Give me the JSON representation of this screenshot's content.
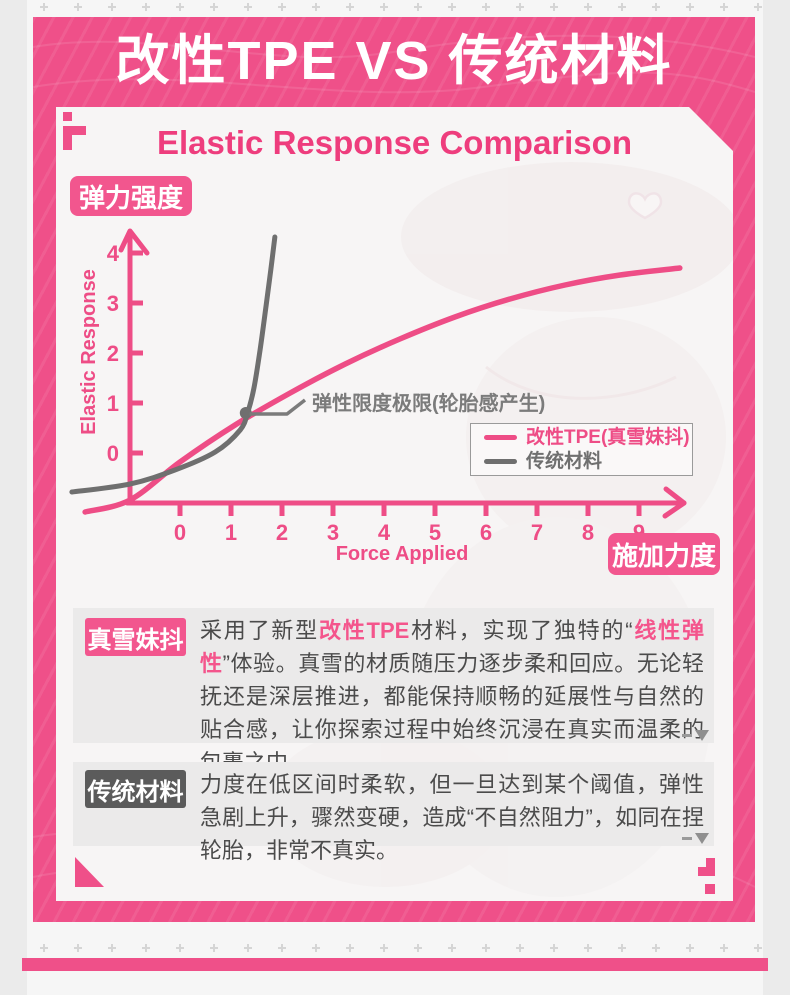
{
  "page_title": "改性TPE VS 传统材料",
  "chart_section": {
    "heading": "Elastic Response Comparison",
    "y_axis_badge": "弹力强度",
    "x_axis_badge": "施加力度"
  },
  "chart_data": {
    "type": "line",
    "title": "Elastic Response Comparison",
    "xlabel": "Force Applied",
    "ylabel": "Elastic Response",
    "x_ticks": [
      0,
      1,
      2,
      3,
      4,
      5,
      6,
      7,
      8,
      9
    ],
    "y_ticks": [
      0,
      1,
      2,
      3,
      4
    ],
    "grid": false,
    "legend_position": "lower right",
    "series": [
      {
        "name": "改性TPE(真雪妹抖)",
        "color": "#ee4d86",
        "x": [
          -1.86,
          -0.98,
          0,
          1.08,
          2.16,
          3.24,
          4.31,
          5.39,
          6.47,
          7.55,
          8.63,
          9.8
        ],
        "y": [
          -1.18,
          -0.94,
          -0.18,
          0.56,
          1.2,
          1.78,
          2.28,
          2.72,
          3.08,
          3.36,
          3.56,
          3.7
        ]
      },
      {
        "name": "传统材料",
        "color": "#6f6f6f",
        "x": [
          -2.12,
          -0.98,
          -0.1,
          0.69,
          1.18,
          1.33,
          1.45,
          1.57,
          1.69,
          1.78,
          1.86
        ],
        "y": [
          -0.78,
          -0.62,
          -0.34,
          0.02,
          0.46,
          0.82,
          1.3,
          2.06,
          2.96,
          3.66,
          4.32
        ]
      }
    ],
    "annotation": {
      "text": "弹性限度极限(轮胎感产生)",
      "x": 1.29,
      "y": 0.8
    }
  },
  "info_blocks": [
    {
      "badge": "真雪妹抖",
      "badge_bg": "#f2568e",
      "segments": [
        {
          "text": "采用了新型"
        },
        {
          "text": "改性TPE",
          "em": true
        },
        {
          "text": "材料，实现了独特的“"
        },
        {
          "text": "线性弹性",
          "em": true
        },
        {
          "text": "”体验。真雪的材质随压力逐步柔和回应。无论轻抚还是深层推进，都能保持顺畅的延展性与自然的贴合感，让你探索过程中始终沉浸在真实而温柔的包裹之中。"
        }
      ]
    },
    {
      "badge": "传统材料",
      "badge_bg": "#5b5b5b",
      "segments": [
        {
          "text": "力度在低区间时柔软，但一旦达到某个阈值，弹性急剧上升，骤然变硬，造成“不自然阻力”，如同在捏轮胎，非常不真实。"
        }
      ]
    }
  ],
  "colors": {
    "accent_pink": "#ef5089",
    "heading_pink": "#ee3d7d",
    "emphasis_pink": "#f4558c",
    "body_gray": "#4b4b4b",
    "annotation_gray": "#7b7b7b"
  }
}
